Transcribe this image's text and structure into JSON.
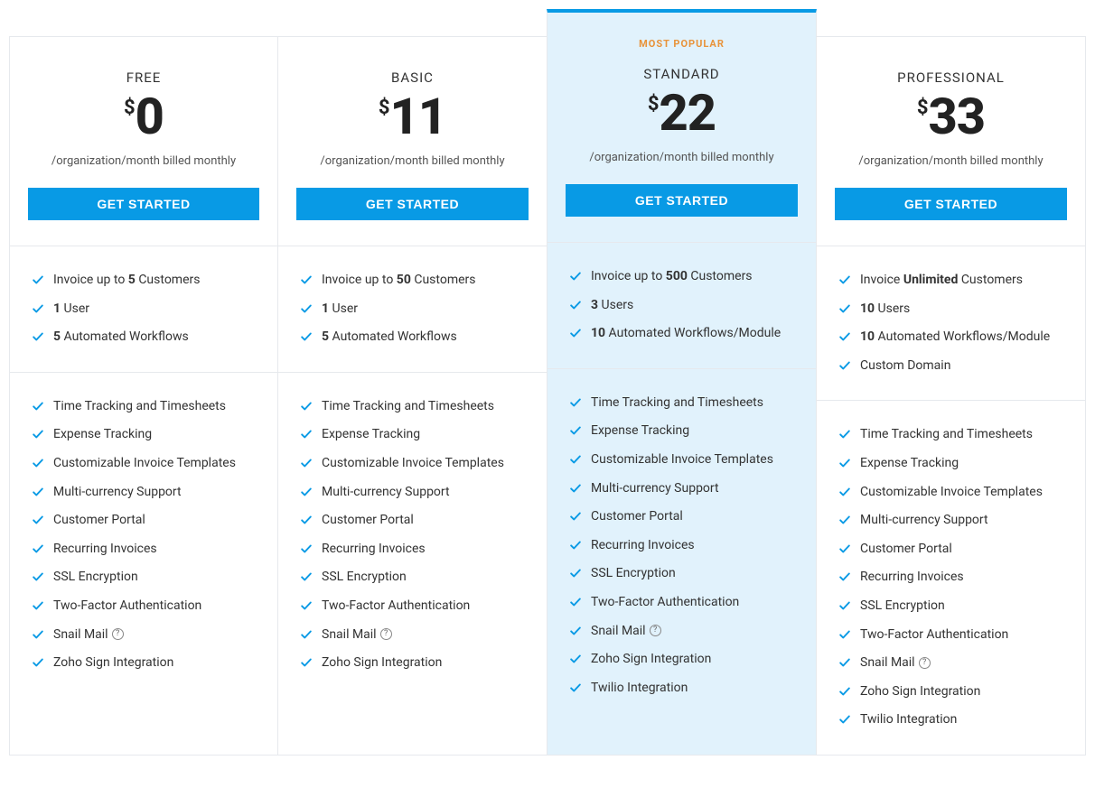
{
  "colors": {
    "accent": "#089ae5",
    "highlight_bg": "#e1f2fc",
    "border": "#e6e9ed",
    "badge": "#e8933a",
    "text": "#333333",
    "price": "#222222"
  },
  "cta_label": "GET STARTED",
  "billing_note": "/organization/month billed monthly",
  "currency_symbol": "$",
  "badge_text": "MOST POPULAR",
  "plans": [
    {
      "id": "free",
      "name": "FREE",
      "price": "0",
      "highlight": false,
      "primary_features": [
        {
          "html": "Invoice up to <b>5</b> Customers"
        },
        {
          "html": "<b>1</b> User"
        },
        {
          "html": "<b>5</b> Automated Workflows"
        }
      ],
      "secondary_features": [
        {
          "text": "Time Tracking and Timesheets"
        },
        {
          "text": "Expense Tracking"
        },
        {
          "text": "Customizable Invoice Templates"
        },
        {
          "text": "Multi-currency Support"
        },
        {
          "text": "Customer Portal"
        },
        {
          "text": "Recurring Invoices"
        },
        {
          "text": "SSL Encryption"
        },
        {
          "text": "Two-Factor Authentication"
        },
        {
          "text": " Snail Mail",
          "help": true
        },
        {
          "text": "Zoho Sign Integration"
        }
      ]
    },
    {
      "id": "basic",
      "name": "BASIC",
      "price": "11",
      "highlight": false,
      "primary_features": [
        {
          "html": "Invoice up to <b>50</b> Customers"
        },
        {
          "html": "<b>1</b> User"
        },
        {
          "html": "<b>5</b> Automated Workflows"
        }
      ],
      "secondary_features": [
        {
          "text": "Time Tracking and Timesheets"
        },
        {
          "text": "Expense Tracking"
        },
        {
          "text": "Customizable Invoice Templates"
        },
        {
          "text": "Multi-currency Support"
        },
        {
          "text": "Customer Portal"
        },
        {
          "text": "Recurring Invoices"
        },
        {
          "text": "SSL Encryption"
        },
        {
          "text": "Two-Factor Authentication"
        },
        {
          "text": " Snail Mail",
          "help": true
        },
        {
          "text": "Zoho Sign Integration"
        }
      ]
    },
    {
      "id": "standard",
      "name": "STANDARD",
      "price": "22",
      "highlight": true,
      "primary_features": [
        {
          "html": "Invoice up to <b>500</b> Customers"
        },
        {
          "html": "<b>3</b> Users"
        },
        {
          "html": "<b>10</b> Automated Workflows/Module"
        }
      ],
      "secondary_features": [
        {
          "text": "Time Tracking and Timesheets"
        },
        {
          "text": "Expense Tracking"
        },
        {
          "text": "Customizable Invoice Templates"
        },
        {
          "text": "Multi-currency Support"
        },
        {
          "text": "Customer Portal"
        },
        {
          "text": "Recurring Invoices"
        },
        {
          "text": "SSL Encryption"
        },
        {
          "text": "Two-Factor Authentication"
        },
        {
          "text": " Snail Mail",
          "help": true
        },
        {
          "text": "Zoho Sign Integration"
        },
        {
          "text": "Twilio Integration"
        }
      ]
    },
    {
      "id": "professional",
      "name": "PROFESSIONAL",
      "price": "33",
      "highlight": false,
      "primary_features": [
        {
          "html": "Invoice <b>Unlimited</b> Customers"
        },
        {
          "html": "<b>10</b> Users"
        },
        {
          "html": "<b>10</b> Automated Workflows/Module"
        },
        {
          "html": "Custom Domain"
        }
      ],
      "secondary_features": [
        {
          "text": "Time Tracking and Timesheets"
        },
        {
          "text": "Expense Tracking"
        },
        {
          "text": "Customizable Invoice Templates"
        },
        {
          "text": "Multi-currency Support"
        },
        {
          "text": "Customer Portal"
        },
        {
          "text": "Recurring Invoices"
        },
        {
          "text": "SSL Encryption"
        },
        {
          "text": "Two-Factor Authentication"
        },
        {
          "text": " Snail Mail",
          "help": true
        },
        {
          "text": "Zoho Sign Integration"
        },
        {
          "text": "Twilio Integration"
        }
      ]
    }
  ]
}
